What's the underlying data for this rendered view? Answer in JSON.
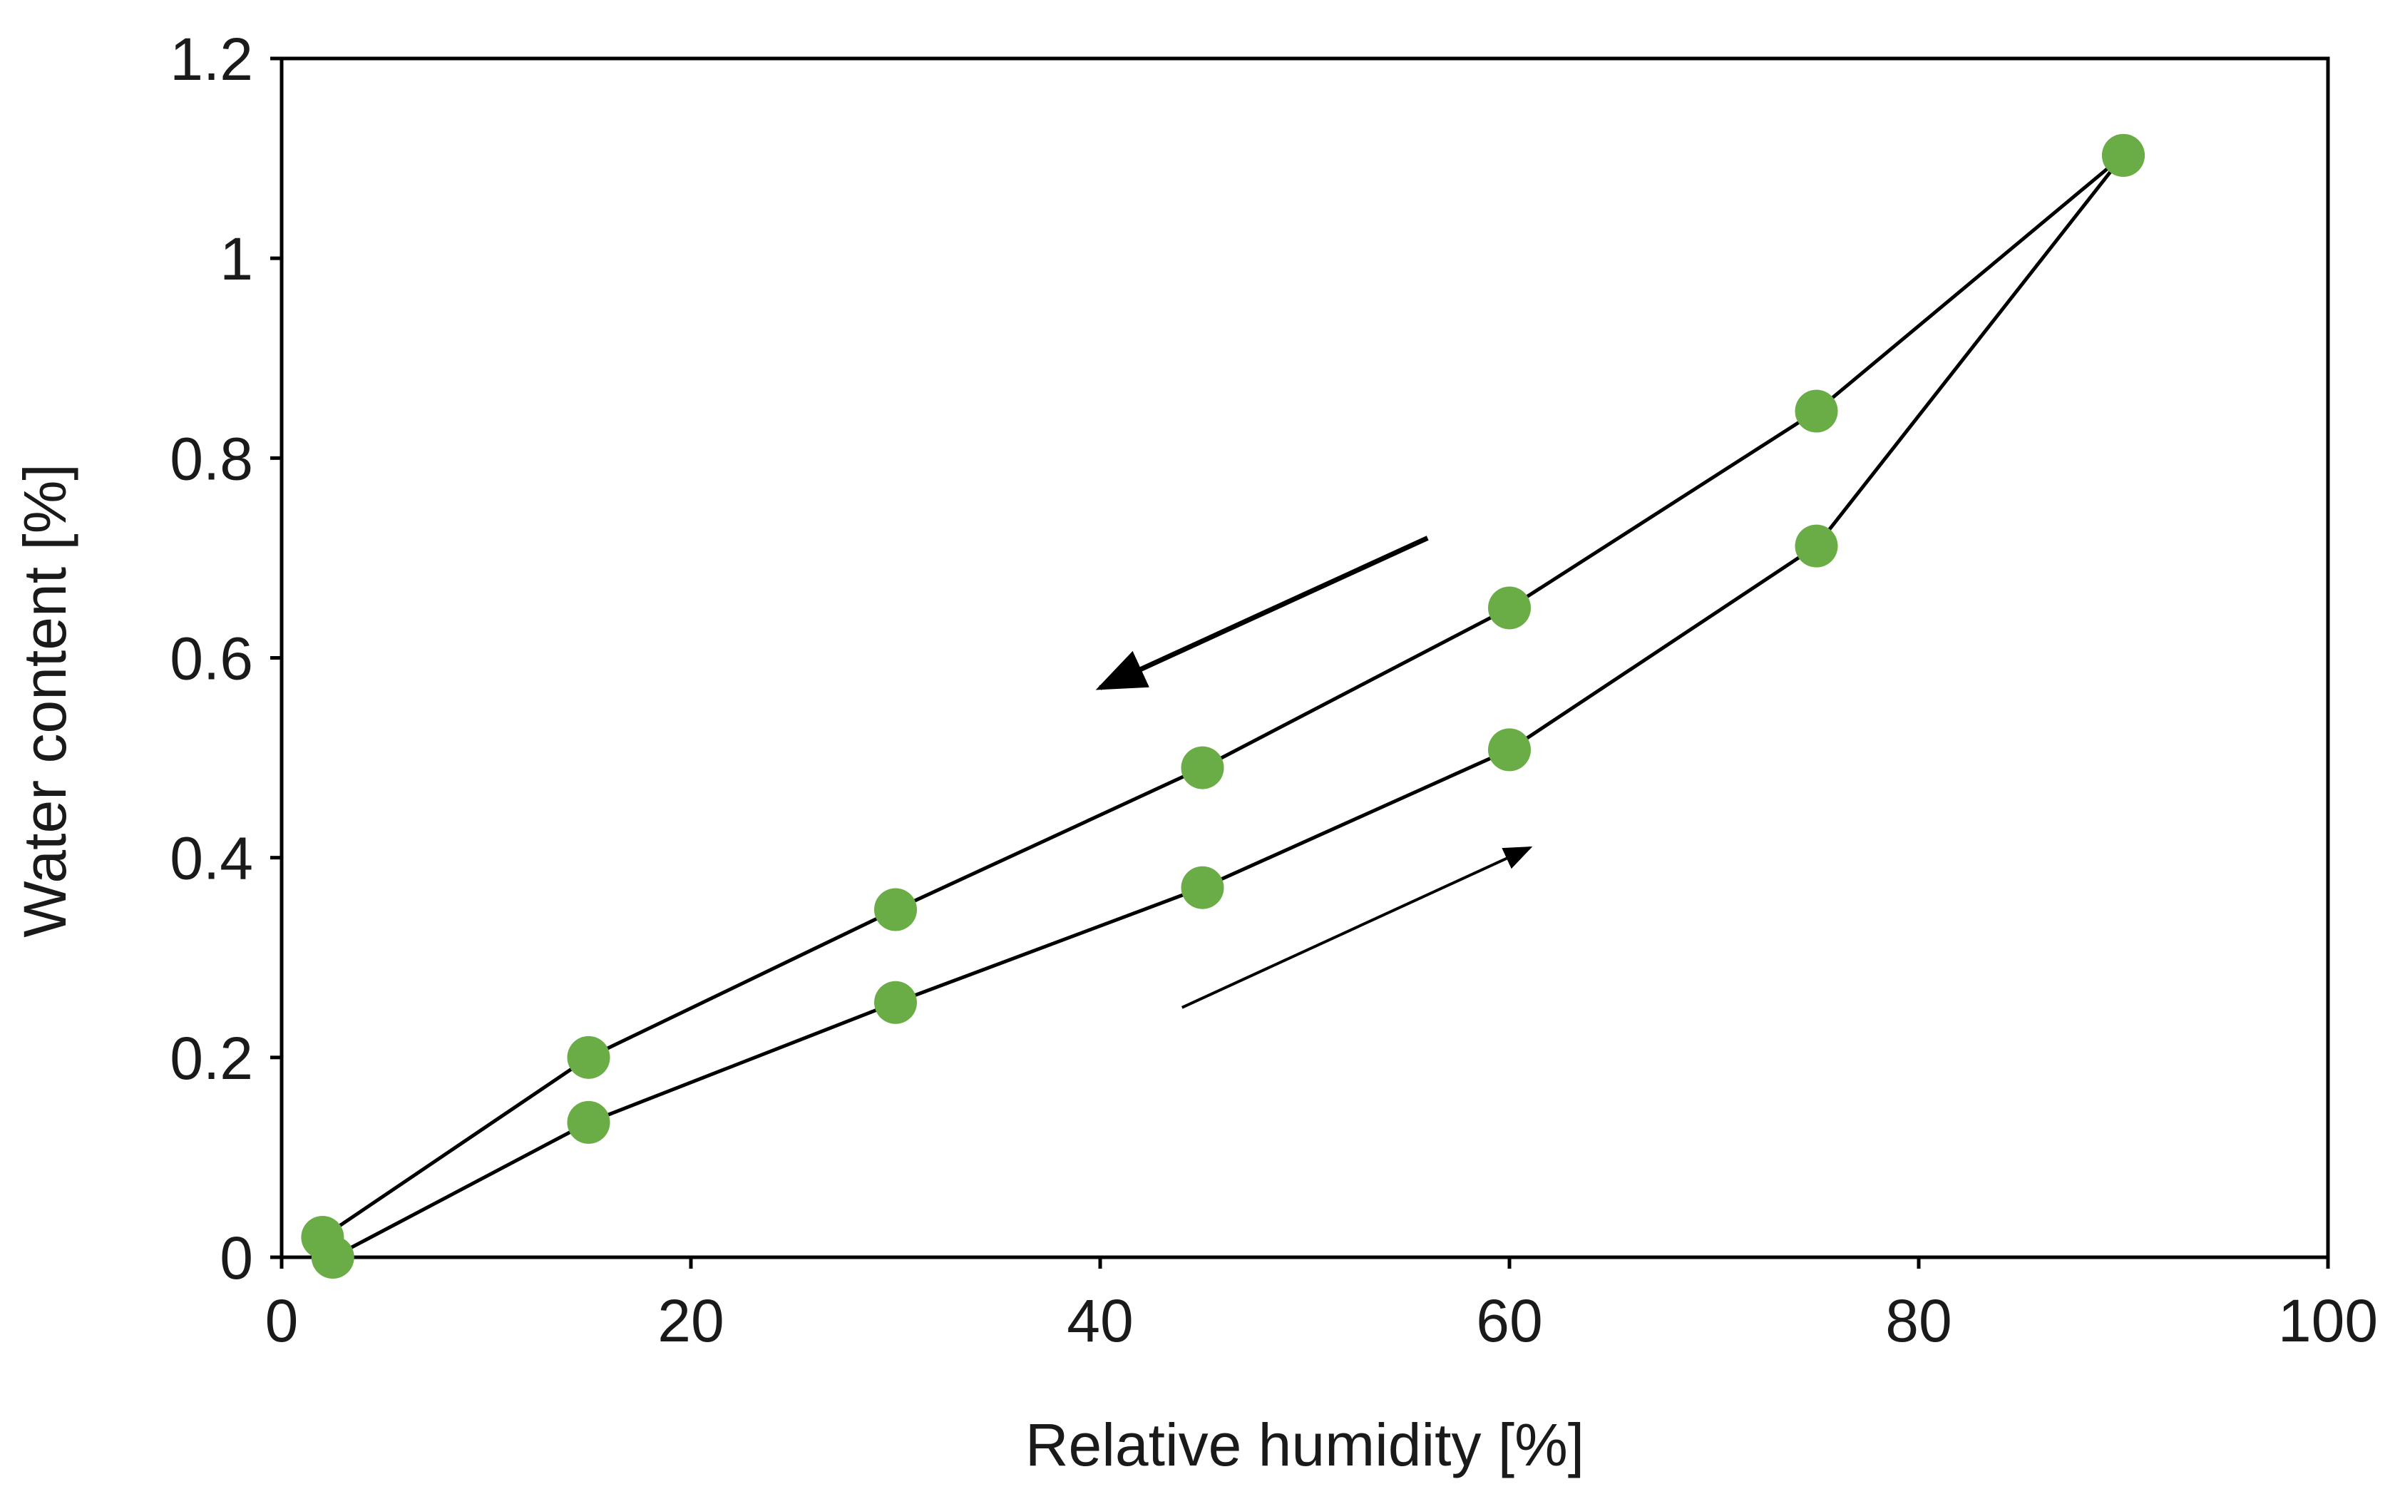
{
  "chart_data": {
    "type": "scatter",
    "xlabel": "Relative humidity [%]",
    "ylabel": "Water content [%]",
    "xlim": [
      0,
      100
    ],
    "ylim": [
      0,
      1.2
    ],
    "x_ticks": [
      0,
      20,
      40,
      60,
      80,
      100
    ],
    "x_tick_labels": [
      "0",
      "20",
      "40",
      "60",
      "80",
      "100"
    ],
    "y_ticks": [
      0,
      0.2,
      0.4,
      0.6,
      0.8,
      1.0,
      1.2
    ],
    "y_tick_labels": [
      "0",
      "0.2",
      "0.4",
      "0.6",
      "0.8",
      "1",
      "1.2"
    ],
    "grid": false,
    "legend": false,
    "marker_color": "#6aac46",
    "line_color": "#000000",
    "series": [
      {
        "x": [
          2.5,
          15,
          30,
          45,
          60,
          75,
          90
        ],
        "y": [
          0.0,
          0.135,
          0.255,
          0.37,
          0.508,
          0.712,
          1.103
        ]
      },
      {
        "x": [
          90,
          75,
          60,
          45,
          30,
          15,
          2
        ],
        "y": [
          1.103,
          0.847,
          0.65,
          0.49,
          0.348,
          0.2,
          0.02
        ]
      }
    ],
    "annotations": [
      {
        "type": "arrow",
        "from": [
          56,
          0.72
        ],
        "to": [
          40,
          0.57
        ]
      },
      {
        "type": "arrow",
        "from": [
          44,
          0.25
        ],
        "to": [
          61,
          0.41
        ]
      }
    ]
  }
}
